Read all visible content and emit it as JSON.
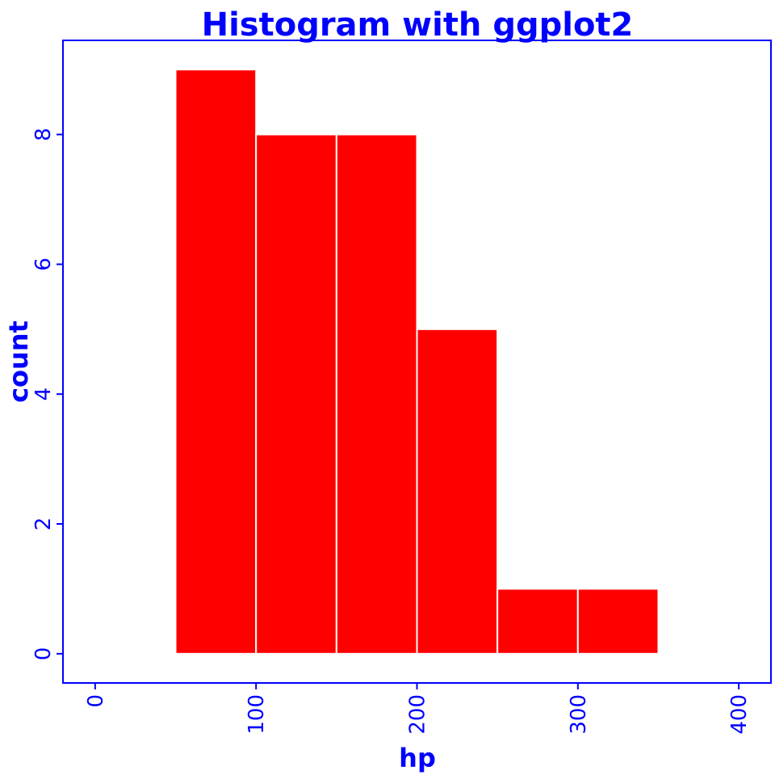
{
  "chart_data": {
    "type": "bar",
    "title": "Histogram with ggplot2",
    "xlabel": "hp",
    "ylabel": "count",
    "bins": [
      {
        "start": 50,
        "end": 100,
        "count": 9
      },
      {
        "start": 100,
        "end": 150,
        "count": 8
      },
      {
        "start": 150,
        "end": 200,
        "count": 8
      },
      {
        "start": 200,
        "end": 250,
        "count": 5
      },
      {
        "start": 250,
        "end": 300,
        "count": 1
      },
      {
        "start": 300,
        "end": 350,
        "count": 1
      }
    ],
    "xlim": [
      -20,
      420
    ],
    "ylim": [
      -0.45,
      9.45
    ],
    "xticks": [
      0,
      100,
      200,
      300,
      400
    ],
    "yticks": [
      0,
      2,
      4,
      6,
      8
    ],
    "x_tick_labels": [
      "0",
      "100",
      "200",
      "300",
      "400"
    ],
    "y_tick_labels": [
      "0",
      "2",
      "4",
      "6",
      "8"
    ],
    "grid": false,
    "colors": {
      "fill": "#ff0000",
      "bar_outline": "#ffffff",
      "text": "#0000ff",
      "frame": "#0000ff",
      "background": "#ffffff"
    }
  }
}
